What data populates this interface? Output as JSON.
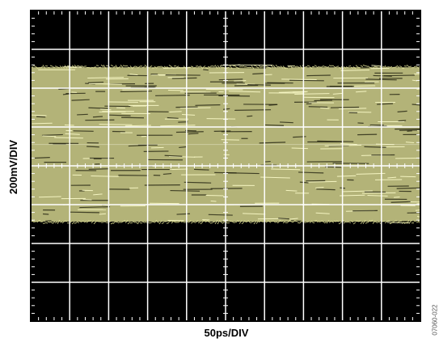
{
  "chart_data": {
    "type": "eye-diagram",
    "xlabel": "50ps/DIV",
    "ylabel": "200mV/DIV",
    "grid": true,
    "divisions": {
      "x": 10,
      "y": 8
    },
    "y_units": "mV",
    "x_units": "ps",
    "signal_band": {
      "upper_edge_div": 2.6,
      "lower_edge_div": -1.5,
      "center_div": 0.55
    },
    "trace_color": "#e6e69a",
    "background_color": "#000000",
    "grid_color": "#ffffff"
  },
  "figure_id": "07060-022"
}
